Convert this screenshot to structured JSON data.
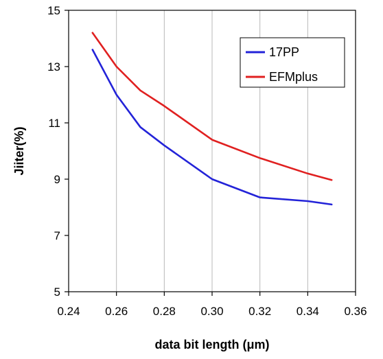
{
  "chart_data": {
    "type": "line",
    "title": "",
    "xlabel": "data bit length (μm)",
    "ylabel": "Jiiter(%)",
    "xlim": [
      0.24,
      0.36
    ],
    "ylim": [
      5,
      15
    ],
    "xticks": [
      "0.24",
      "0.26",
      "0.28",
      "0.30",
      "0.32",
      "0.34",
      "0.36"
    ],
    "yticks": [
      "5",
      "7",
      "9",
      "11",
      "13",
      "15"
    ],
    "grid": "vertical",
    "legend": "top-right",
    "series": [
      {
        "name": "17PP",
        "color": "#2323d8",
        "x": [
          0.25,
          0.26,
          0.27,
          0.28,
          0.3,
          0.32,
          0.34,
          0.35
        ],
        "y": [
          13.6,
          12.0,
          10.85,
          10.2,
          9.0,
          8.35,
          8.22,
          8.1
        ]
      },
      {
        "name": "EFMplus",
        "color": "#e02020",
        "x": [
          0.25,
          0.26,
          0.27,
          0.28,
          0.3,
          0.32,
          0.34,
          0.35
        ],
        "y": [
          14.2,
          13.0,
          12.15,
          11.6,
          10.4,
          9.75,
          9.2,
          8.97
        ]
      }
    ]
  }
}
